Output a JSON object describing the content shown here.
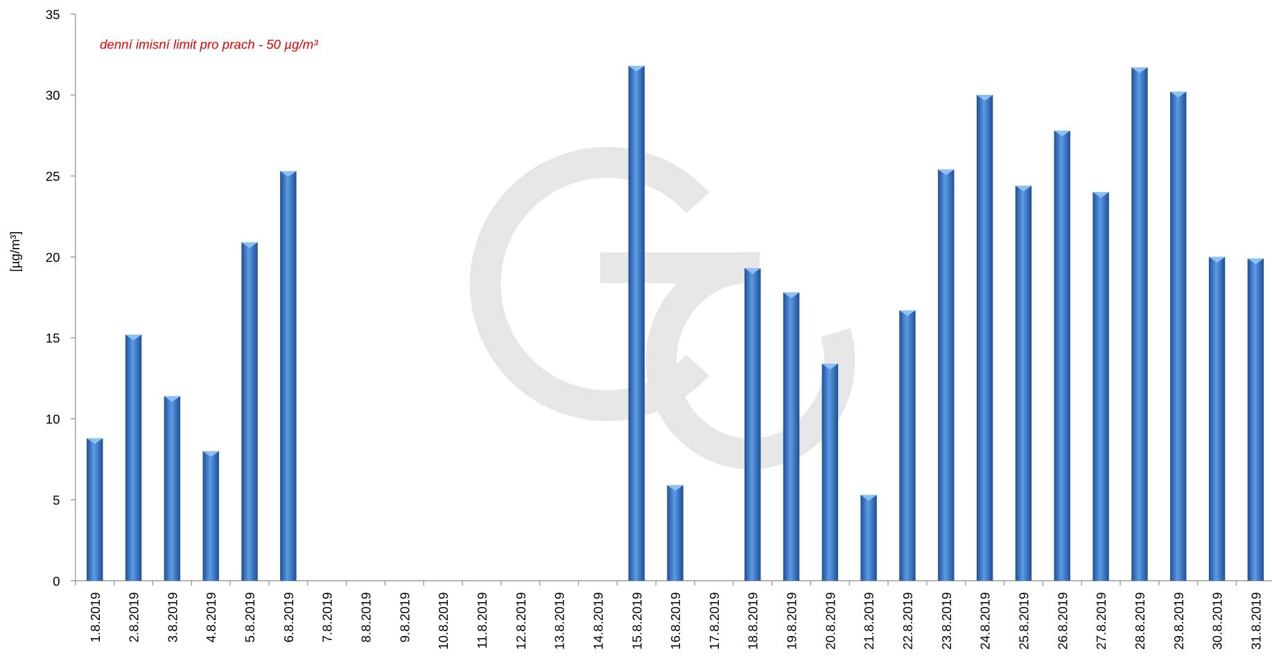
{
  "chart_data": {
    "type": "bar",
    "annotation": "denní imisní limit pro prach - 50 µg/m³",
    "y_label": "[µg/m³]",
    "categories": [
      "1.8.2019",
      "2.8.2019",
      "3.8.2019",
      "4.8.2019",
      "5.8.2019",
      "6.8.2019",
      "7.8.2019",
      "8.8.2019",
      "9.8.2019",
      "10.8.2019",
      "11.8.2019",
      "12.8.2019",
      "13.8.2019",
      "14.8.2019",
      "15.8.2019",
      "16.8.2019",
      "17.8.2019",
      "18.8.2019",
      "19.8.2019",
      "20.8.2019",
      "21.8.2019",
      "22.8.2019",
      "23.8.2019",
      "24.8.2019",
      "25.8.2019",
      "26.8.2019",
      "27.8.2019",
      "28.8.2019",
      "29.8.2019",
      "30.8.2019",
      "31.8.2019"
    ],
    "values": [
      8.8,
      15.2,
      11.4,
      8.0,
      20.9,
      25.3,
      null,
      null,
      null,
      null,
      null,
      null,
      null,
      null,
      31.8,
      5.9,
      null,
      19.3,
      17.8,
      13.4,
      5.3,
      16.7,
      25.4,
      30.0,
      24.4,
      27.8,
      24.0,
      31.7,
      30.2,
      20.0,
      19.9
    ],
    "color": "#3a78c8",
    "ylim": [
      0,
      35
    ],
    "yticks": [
      0,
      5,
      10,
      15,
      20,
      25,
      30,
      35
    ]
  }
}
